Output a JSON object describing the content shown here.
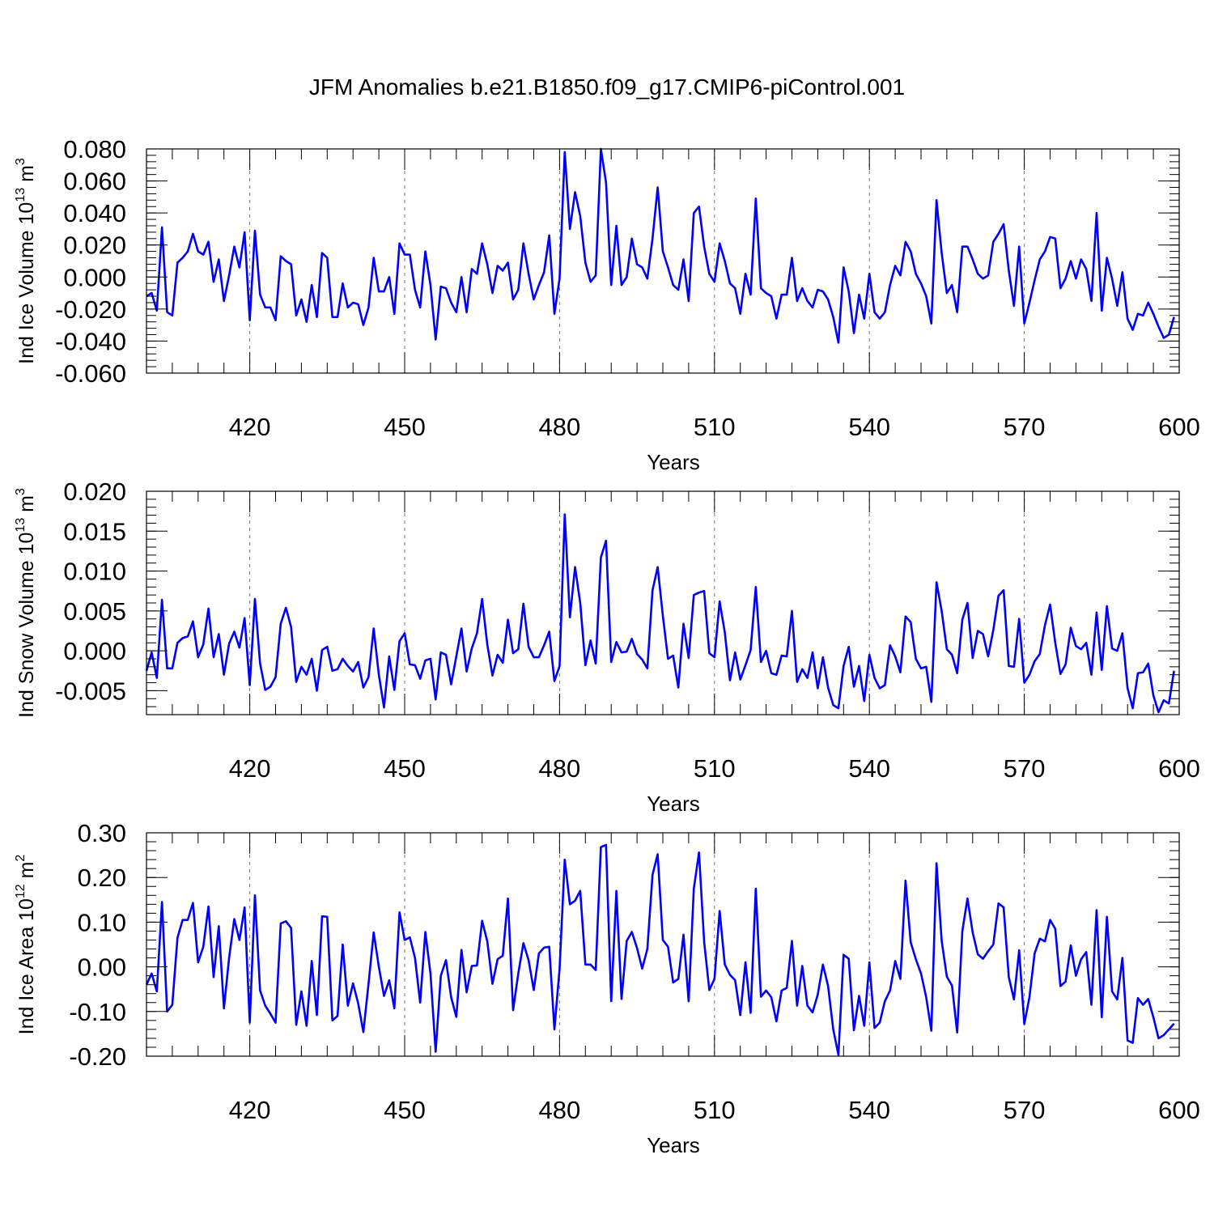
{
  "title": "JFM Anomalies b.e21.B1850.f09_g17.CMIP6-piControl.001",
  "line_color": "#0000ff",
  "chart_data": [
    {
      "type": "line",
      "name": "ice-volume",
      "ylabel_parts": [
        "Ind Ice Volume 10",
        "13",
        " m",
        "3"
      ],
      "xlabel": "Years",
      "xlim": [
        400,
        600
      ],
      "ylim": [
        -0.06,
        0.08
      ],
      "xticks": [
        420,
        450,
        480,
        510,
        540,
        570,
        600
      ],
      "yticks": [
        0.08,
        0.06,
        0.04,
        0.02,
        0.0,
        -0.02,
        -0.04,
        -0.06
      ],
      "ytick_labels": [
        "0.080",
        "0.060",
        "0.040",
        "0.020",
        "0.000",
        "-0.020",
        "-0.040",
        "-0.060"
      ],
      "ytick_minor_step": 0.004,
      "x_start": 400,
      "values": [
        -0.012,
        -0.01,
        -0.021,
        0.031,
        -0.022,
        -0.024,
        0.009,
        0.012,
        0.016,
        0.027,
        0.016,
        0.014,
        0.022,
        -0.003,
        0.011,
        -0.015,
        0.001,
        0.019,
        0.006,
        0.028,
        -0.027,
        0.029,
        -0.011,
        -0.019,
        -0.019,
        -0.027,
        0.013,
        0.01,
        0.008,
        -0.024,
        -0.014,
        -0.028,
        -0.005,
        -0.025,
        0.015,
        0.012,
        -0.025,
        -0.025,
        -0.004,
        -0.019,
        -0.016,
        -0.017,
        -0.03,
        -0.019,
        0.012,
        -0.009,
        -0.009,
        0.0,
        -0.023,
        0.021,
        0.014,
        0.014,
        -0.008,
        -0.019,
        0.016,
        -0.005,
        -0.039,
        -0.006,
        -0.007,
        -0.016,
        -0.022,
        0.0,
        -0.022,
        0.005,
        0.002,
        0.021,
        0.008,
        -0.01,
        0.007,
        0.004,
        0.009,
        -0.014,
        -0.008,
        0.021,
        0.002,
        -0.014,
        -0.005,
        0.003,
        0.026,
        -0.023,
        -0.001,
        0.078,
        0.03,
        0.053,
        0.038,
        0.009,
        -0.003,
        0.001,
        0.08,
        0.059,
        -0.005,
        0.032,
        -0.005,
        0.0,
        0.024,
        0.008,
        0.006,
        -0.001,
        0.024,
        0.056,
        0.016,
        0.006,
        -0.005,
        -0.008,
        0.011,
        -0.015,
        0.04,
        0.044,
        0.019,
        0.002,
        -0.003,
        0.021,
        0.01,
        -0.004,
        -0.007,
        -0.023,
        0.002,
        -0.011,
        0.049,
        -0.007,
        -0.01,
        -0.012,
        -0.026,
        -0.011,
        -0.011,
        0.012,
        -0.015,
        -0.007,
        -0.015,
        -0.019,
        -0.008,
        -0.009,
        -0.014,
        -0.025,
        -0.041,
        0.006,
        -0.009,
        -0.035,
        -0.011,
        -0.026,
        0.002,
        -0.022,
        -0.026,
        -0.022,
        -0.005,
        0.007,
        0.001,
        0.022,
        0.016,
        0.002,
        -0.004,
        -0.012,
        -0.029,
        0.048,
        0.015,
        -0.01,
        -0.005,
        -0.022,
        0.019,
        0.019,
        0.011,
        0.002,
        -0.001,
        0.001,
        0.022,
        0.027,
        0.033,
        0.004,
        -0.018,
        0.019,
        -0.029,
        -0.016,
        -0.002,
        0.011,
        0.016,
        0.025,
        0.024,
        -0.007,
        -0.001,
        0.01,
        -0.001,
        0.011,
        0.005,
        -0.015,
        0.04,
        -0.021,
        0.012,
        -0.001,
        -0.018,
        0.003,
        -0.026,
        -0.033,
        -0.023,
        -0.024,
        -0.016,
        -0.023,
        -0.031,
        -0.038,
        -0.036,
        -0.025
      ]
    },
    {
      "type": "line",
      "name": "snow-volume",
      "ylabel_parts": [
        "Ind Snow Volume 10",
        "13",
        " m",
        "3"
      ],
      "xlabel": "Years",
      "xlim": [
        400,
        600
      ],
      "ylim": [
        -0.008,
        0.02
      ],
      "xticks": [
        420,
        450,
        480,
        510,
        540,
        570,
        600
      ],
      "yticks": [
        0.02,
        0.015,
        0.01,
        0.005,
        0.0,
        -0.005
      ],
      "ytick_labels": [
        "0.020",
        "0.015",
        "0.010",
        "0.005",
        "0.000",
        "-0.005"
      ],
      "ytick_minor_step": 0.001,
      "x_start": 400,
      "values": [
        -0.0025,
        -0.0002,
        -0.0034,
        0.0064,
        -0.0022,
        -0.0022,
        0.001,
        0.0016,
        0.0018,
        0.0037,
        -0.0008,
        0.0008,
        0.0053,
        -0.0008,
        0.0021,
        -0.003,
        0.0009,
        0.0024,
        0.0004,
        0.0041,
        -0.0043,
        0.0065,
        -0.0016,
        -0.0049,
        -0.0045,
        -0.0033,
        0.0034,
        0.0054,
        0.003,
        -0.0039,
        -0.002,
        -0.003,
        -0.001,
        -0.005,
        0.0001,
        0.0005,
        -0.0025,
        -0.0023,
        -0.001,
        -0.0019,
        -0.0026,
        -0.0014,
        -0.0046,
        -0.0033,
        0.0028,
        -0.003,
        -0.0071,
        -0.0007,
        -0.0049,
        0.0012,
        0.0022,
        -0.0017,
        -0.0018,
        -0.0035,
        -0.0012,
        -0.001,
        -0.0061,
        -0.0002,
        -0.0005,
        -0.0042,
        -0.0007,
        0.0028,
        -0.0026,
        0.0003,
        0.0022,
        0.0065,
        0.0008,
        -0.0031,
        -0.0005,
        -0.0015,
        0.0039,
        -0.0003,
        0.0002,
        0.0059,
        0.0005,
        -0.0008,
        -0.0008,
        0.0007,
        0.0024,
        -0.0038,
        -0.0019,
        0.0171,
        0.0042,
        0.0105,
        0.006,
        -0.0018,
        0.0013,
        -0.0016,
        0.0117,
        0.0138,
        -0.0014,
        0.0011,
        -0.0002,
        -0.0001,
        0.0015,
        -0.0004,
        -0.0011,
        -0.0022,
        0.0076,
        0.0105,
        0.0044,
        -0.001,
        -0.0006,
        -0.0046,
        0.0034,
        -0.0009,
        0.007,
        0.0073,
        0.0075,
        -0.0003,
        -0.0008,
        0.0062,
        0.0023,
        -0.0037,
        -0.0002,
        -0.0036,
        -0.0018,
        0.0001,
        0.008,
        -0.0014,
        0.0,
        -0.0028,
        -0.003,
        -0.0006,
        -0.0007,
        0.005,
        -0.0039,
        -0.0023,
        -0.0034,
        -0.0002,
        -0.0047,
        -0.0008,
        -0.0046,
        -0.0068,
        -0.0072,
        -0.0019,
        0.0005,
        -0.0045,
        -0.0019,
        -0.0063,
        -0.0005,
        -0.0034,
        -0.0047,
        -0.0043,
        0.0007,
        -0.0007,
        -0.0027,
        0.0043,
        0.0036,
        -0.001,
        -0.0022,
        -0.002,
        -0.0064,
        0.0086,
        0.005,
        0.0002,
        -0.0005,
        -0.0028,
        0.0039,
        0.006,
        -0.0009,
        0.0025,
        0.0021,
        -0.0007,
        0.0026,
        0.0069,
        0.0076,
        -0.0019,
        -0.002,
        0.004,
        -0.004,
        -0.003,
        -0.0013,
        -0.0004,
        0.0032,
        0.0058,
        0.001,
        -0.0029,
        -0.0017,
        0.0029,
        0.0006,
        0.0002,
        0.001,
        -0.003,
        0.0048,
        -0.0024,
        0.0056,
        0.0003,
        0.0,
        0.0022,
        -0.0047,
        -0.0072,
        -0.0028,
        -0.0027,
        -0.0016,
        -0.0056,
        -0.0077,
        -0.0062,
        -0.0066,
        -0.0025
      ]
    },
    {
      "type": "line",
      "name": "ice-area",
      "ylabel_parts": [
        "Ind Ice Area 10",
        "12",
        " m",
        "2"
      ],
      "xlabel": "Years",
      "xlim": [
        400,
        600
      ],
      "ylim": [
        -0.2,
        0.3
      ],
      "xticks": [
        420,
        450,
        480,
        510,
        540,
        570,
        600
      ],
      "yticks": [
        0.3,
        0.2,
        0.1,
        0.0,
        -0.1,
        -0.2
      ],
      "ytick_labels": [
        "0.30",
        "0.20",
        "0.10",
        "0.00",
        "-0.10",
        "-0.20"
      ],
      "ytick_minor_step": 0.02,
      "x_start": 400,
      "values": [
        -0.04,
        -0.015,
        -0.055,
        0.145,
        -0.1,
        -0.085,
        0.065,
        0.105,
        0.105,
        0.143,
        0.01,
        0.045,
        0.135,
        -0.023,
        0.091,
        -0.093,
        0.02,
        0.107,
        0.06,
        0.133,
        -0.125,
        0.16,
        -0.053,
        -0.087,
        -0.105,
        -0.125,
        0.097,
        0.102,
        0.087,
        -0.13,
        -0.055,
        -0.132,
        0.013,
        -0.108,
        0.113,
        0.112,
        -0.12,
        -0.11,
        0.05,
        -0.087,
        -0.037,
        -0.082,
        -0.146,
        -0.038,
        0.077,
        0.0,
        -0.065,
        -0.03,
        -0.093,
        0.122,
        0.06,
        0.066,
        0.02,
        -0.08,
        0.078,
        -0.015,
        -0.19,
        -0.02,
        0.015,
        -0.068,
        -0.112,
        0.038,
        -0.057,
        0.002,
        0.003,
        0.103,
        0.057,
        -0.038,
        0.017,
        0.025,
        0.153,
        -0.097,
        -0.015,
        0.053,
        0.015,
        -0.052,
        0.03,
        0.043,
        0.045,
        -0.14,
        -0.005,
        0.24,
        0.14,
        0.148,
        0.17,
        0.005,
        0.005,
        -0.007,
        0.268,
        0.273,
        -0.077,
        0.17,
        -0.072,
        0.058,
        0.078,
        0.042,
        -0.004,
        0.04,
        0.206,
        0.252,
        0.06,
        0.045,
        -0.035,
        -0.027,
        0.072,
        -0.077,
        0.175,
        0.256,
        0.056,
        -0.052,
        -0.027,
        0.125,
        0.005,
        -0.018,
        -0.03,
        -0.108,
        0.01,
        -0.103,
        0.175,
        -0.067,
        -0.053,
        -0.068,
        -0.122,
        -0.053,
        -0.047,
        0.058,
        -0.087,
        0.002,
        -0.087,
        -0.102,
        -0.062,
        0.005,
        -0.043,
        -0.14,
        -0.197,
        0.027,
        0.018,
        -0.142,
        -0.065,
        -0.132,
        0.01,
        -0.137,
        -0.125,
        -0.077,
        -0.053,
        0.013,
        -0.027,
        0.193,
        0.055,
        0.017,
        -0.015,
        -0.068,
        -0.143,
        0.232,
        0.058,
        -0.022,
        -0.042,
        -0.147,
        0.08,
        0.153,
        0.077,
        0.028,
        0.018,
        0.035,
        0.05,
        0.142,
        0.133,
        -0.023,
        -0.073,
        0.037,
        -0.128,
        -0.068,
        0.03,
        0.063,
        0.057,
        0.105,
        0.085,
        -0.043,
        -0.033,
        0.048,
        -0.02,
        0.017,
        0.033,
        -0.085,
        0.127,
        -0.113,
        0.112,
        -0.055,
        -0.073,
        0.02,
        -0.165,
        -0.17,
        -0.07,
        -0.085,
        -0.072,
        -0.113,
        -0.16,
        -0.153,
        -0.14,
        -0.127
      ]
    }
  ]
}
